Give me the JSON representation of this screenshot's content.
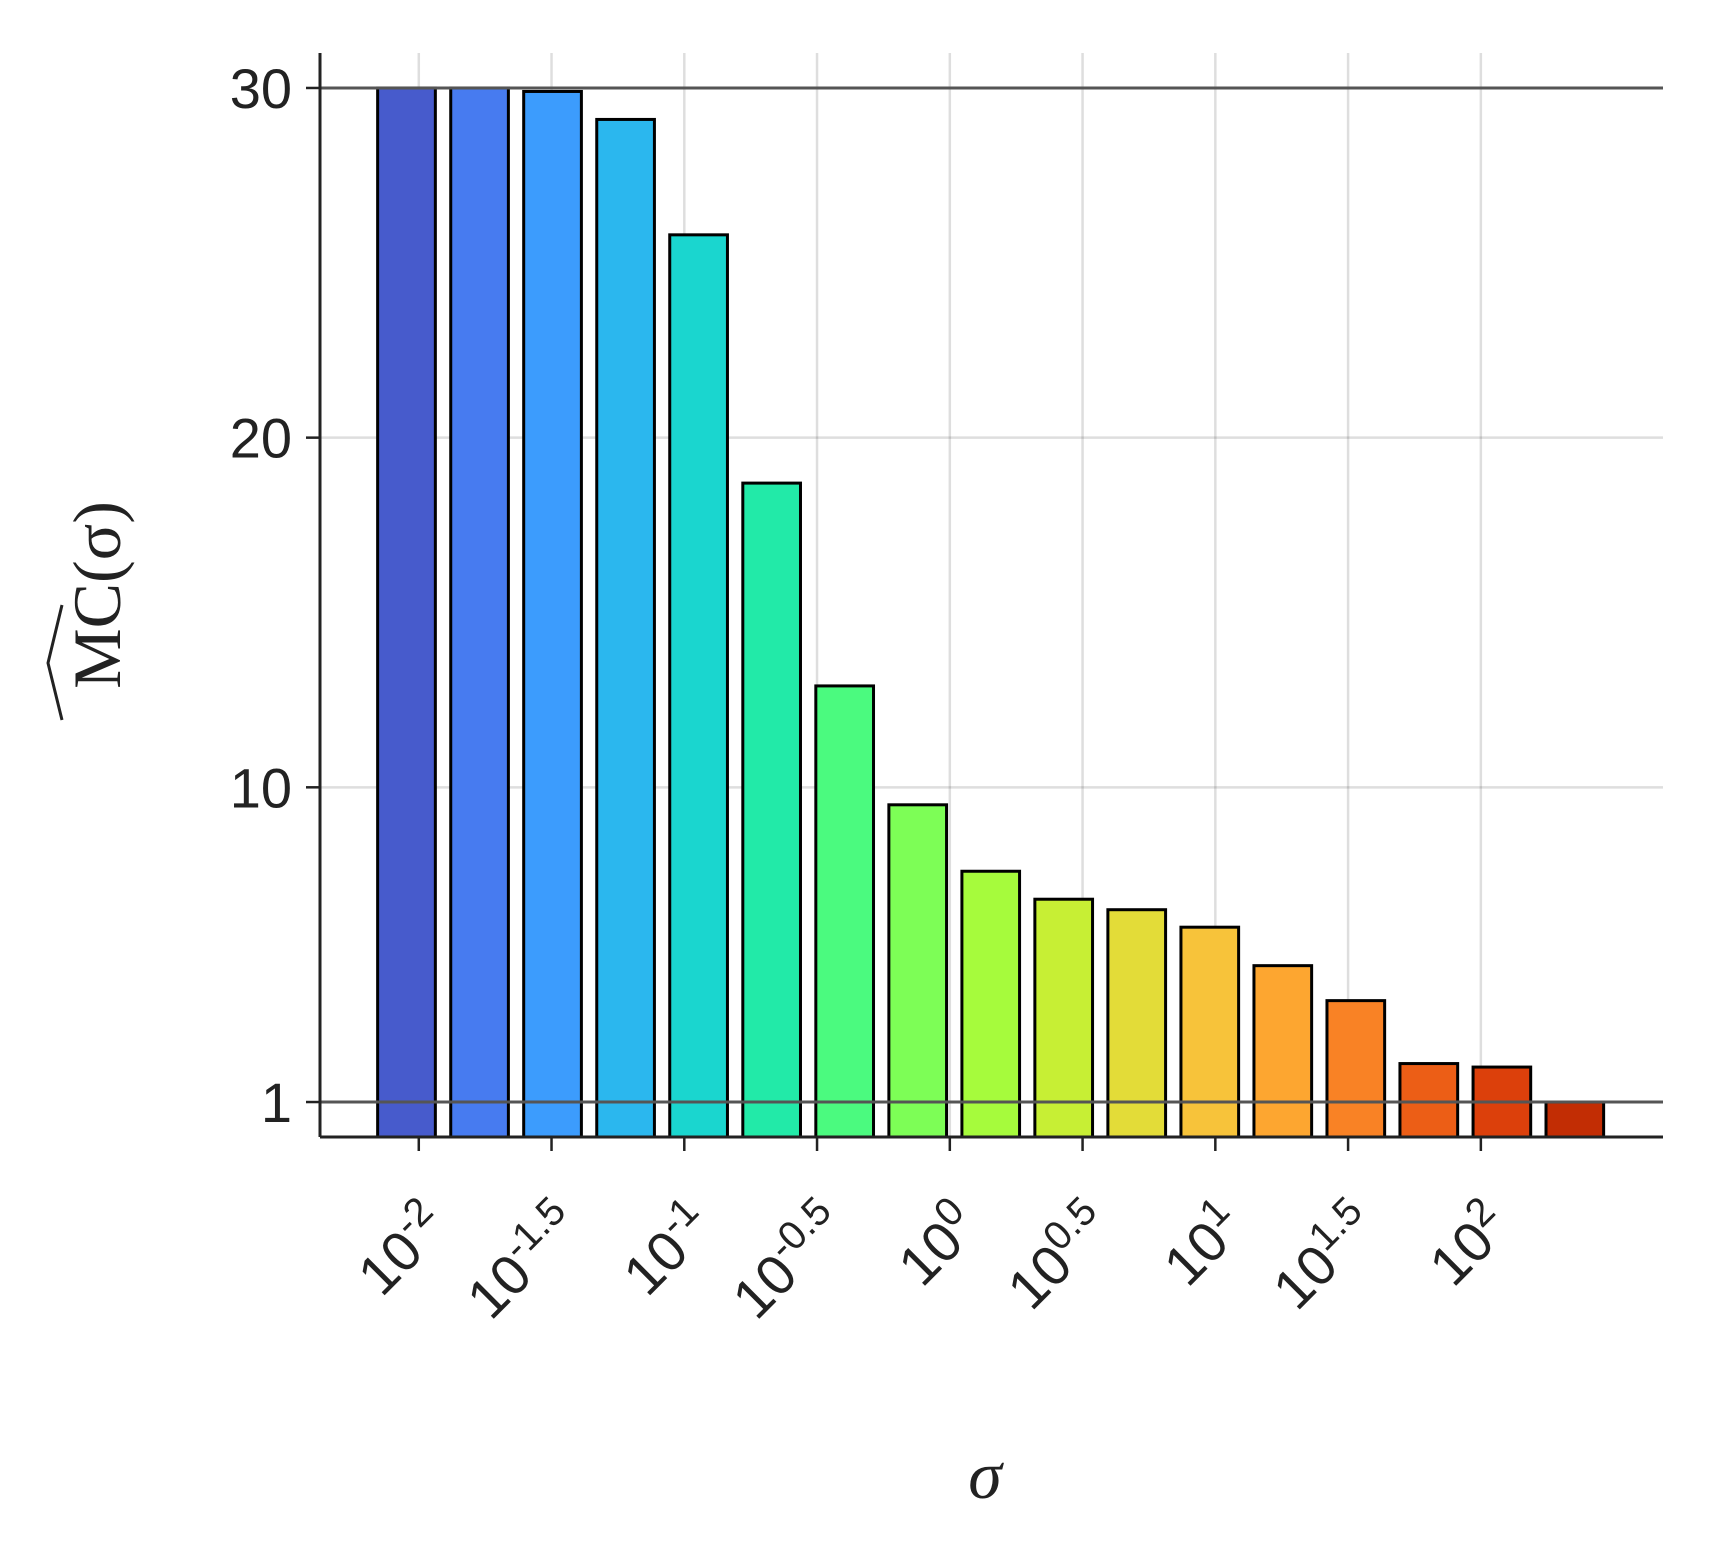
{
  "chart_data": {
    "type": "bar",
    "x_label": "σ",
    "y_label": "MC(σ)",
    "x": [
      0.00899,
      0.01694,
      0.0319,
      0.0601,
      0.1132,
      0.2133,
      0.4018,
      0.757,
      1.426,
      2.685,
      5.058,
      9.53,
      17.95,
      33.81,
      63.68,
      120.0,
      225.9
    ],
    "values": [
      30.0,
      30.0,
      29.9,
      29.1,
      25.8,
      18.7,
      12.9,
      9.5,
      7.6,
      6.8,
      6.5,
      6.0,
      4.9,
      3.9,
      2.1,
      2.0,
      1.0
    ],
    "colors": [
      "#475bcc",
      "#477bf0",
      "#3c9cfd",
      "#2bb7ee",
      "#1ad6cf",
      "#22eaa8",
      "#4bfa7f",
      "#7dfe56",
      "#a6fb3c",
      "#c7ef34",
      "#e3dc38",
      "#f7c33a",
      "#fda630",
      "#f98225",
      "#ec5e16",
      "#dc400b",
      "#c22d04"
    ],
    "xscale": "log",
    "xlim": [
      0.004246,
      485.3
    ],
    "xticks": [
      {
        "value": 0.01,
        "label": "10^-2"
      },
      {
        "value": 0.03162,
        "label": "10^-1.5"
      },
      {
        "value": 0.1,
        "label": "10^-1"
      },
      {
        "value": 0.3162,
        "label": "10^-0.5"
      },
      {
        "value": 1,
        "label": "10^0"
      },
      {
        "value": 3.162,
        "label": "10^0.5"
      },
      {
        "value": 10,
        "label": "10^1"
      },
      {
        "value": 31.62,
        "label": "10^1.5"
      },
      {
        "value": 100,
        "label": "10^2"
      }
    ],
    "ylim": [
      0,
      31
    ],
    "yticks": [
      1,
      10,
      20,
      30
    ],
    "reference_lines": [
      1,
      30
    ],
    "grid": true
  }
}
